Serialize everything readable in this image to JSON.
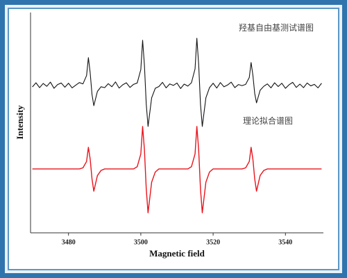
{
  "chart_data": {
    "type": "line",
    "x_label": "Magnetic field",
    "y_label": "Intensity",
    "annotations": [
      "羟基自由基测试谱图",
      "理论拟合谱图"
    ],
    "xlim": [
      3469.5,
      3550.5
    ],
    "xticks": [
      3480,
      3500,
      3520,
      3540
    ],
    "ylim": [
      0,
      100
    ],
    "x": [
      3470,
      3471,
      3472,
      3473,
      3474,
      3475,
      3476,
      3477,
      3478,
      3479,
      3480,
      3481,
      3482,
      3483,
      3484,
      3485,
      3485.5,
      3486,
      3486.5,
      3487,
      3488,
      3489,
      3490,
      3491,
      3492,
      3493,
      3494,
      3495,
      3496,
      3497,
      3498,
      3499,
      3500,
      3500.5,
      3501,
      3501.5,
      3502,
      3503,
      3504,
      3505,
      3506,
      3507,
      3508,
      3509,
      3510,
      3511,
      3512,
      3513,
      3514,
      3515,
      3515.5,
      3516,
      3516.5,
      3517,
      3518,
      3519,
      3520,
      3521,
      3522,
      3523,
      3524,
      3525,
      3526,
      3527,
      3528,
      3529,
      3530,
      3530.5,
      3531,
      3531.5,
      3532,
      3533,
      3534,
      3535,
      3536,
      3537,
      3538,
      3539,
      3540,
      3541,
      3542,
      3543,
      3544,
      3545,
      3546,
      3547,
      3548,
      3549,
      3550
    ],
    "series": [
      {
        "color": "#111111",
        "values": [
          66.2,
          68.1,
          65.9,
          67.8,
          66.5,
          68.4,
          65.6,
          67.3,
          68.0,
          66.1,
          67.9,
          65.8,
          67.0,
          68.2,
          67.6,
          71.4,
          79.5,
          72.6,
          62.8,
          57.7,
          64.2,
          66.3,
          65.9,
          67.7,
          66.3,
          68.5,
          65.7,
          67.2,
          68.1,
          66.0,
          67.4,
          68.0,
          74.1,
          87.4,
          76.1,
          58.5,
          48.3,
          61.3,
          65.6,
          66.4,
          68.3,
          65.8,
          67.6,
          66.9,
          68.0,
          65.5,
          67.5,
          66.6,
          68.1,
          74.4,
          88.3,
          76.5,
          58.5,
          48.3,
          61.3,
          65.9,
          67.9,
          65.7,
          68.2,
          66.3,
          67.1,
          68.4,
          65.9,
          67.3,
          66.8,
          67.4,
          70.5,
          77.3,
          71.5,
          63.3,
          59.0,
          64.7,
          66.5,
          67.6,
          65.8,
          68.1,
          66.4,
          67.9,
          65.6,
          67.2,
          68.3,
          66.0,
          67.5,
          65.9,
          68.0,
          66.7,
          67.4,
          65.8,
          67.9
        ]
      },
      {
        "color": "#e8141c",
        "values": [
          29,
          29,
          29,
          29,
          29,
          29,
          29,
          29,
          29,
          29,
          29,
          29,
          29,
          29,
          29.5,
          32.4,
          38.8,
          33.4,
          24.5,
          18.9,
          26,
          28.3,
          29,
          29,
          29,
          29,
          29,
          29,
          29,
          29,
          29,
          30,
          35.8,
          48.3,
          37.7,
          20.0,
          9.1,
          23,
          27.6,
          29,
          29,
          29,
          29,
          29,
          29,
          29,
          29,
          29,
          30,
          35.8,
          48.3,
          37.7,
          20.0,
          9.1,
          23,
          27.6,
          29,
          29,
          29,
          29,
          29,
          29,
          29,
          29,
          29,
          29.5,
          32.4,
          38.8,
          33.4,
          24.5,
          18.9,
          26,
          28.3,
          29,
          29,
          29,
          29,
          29,
          29,
          29,
          29,
          29,
          29,
          29,
          29,
          29,
          29,
          29,
          29
        ]
      }
    ]
  }
}
